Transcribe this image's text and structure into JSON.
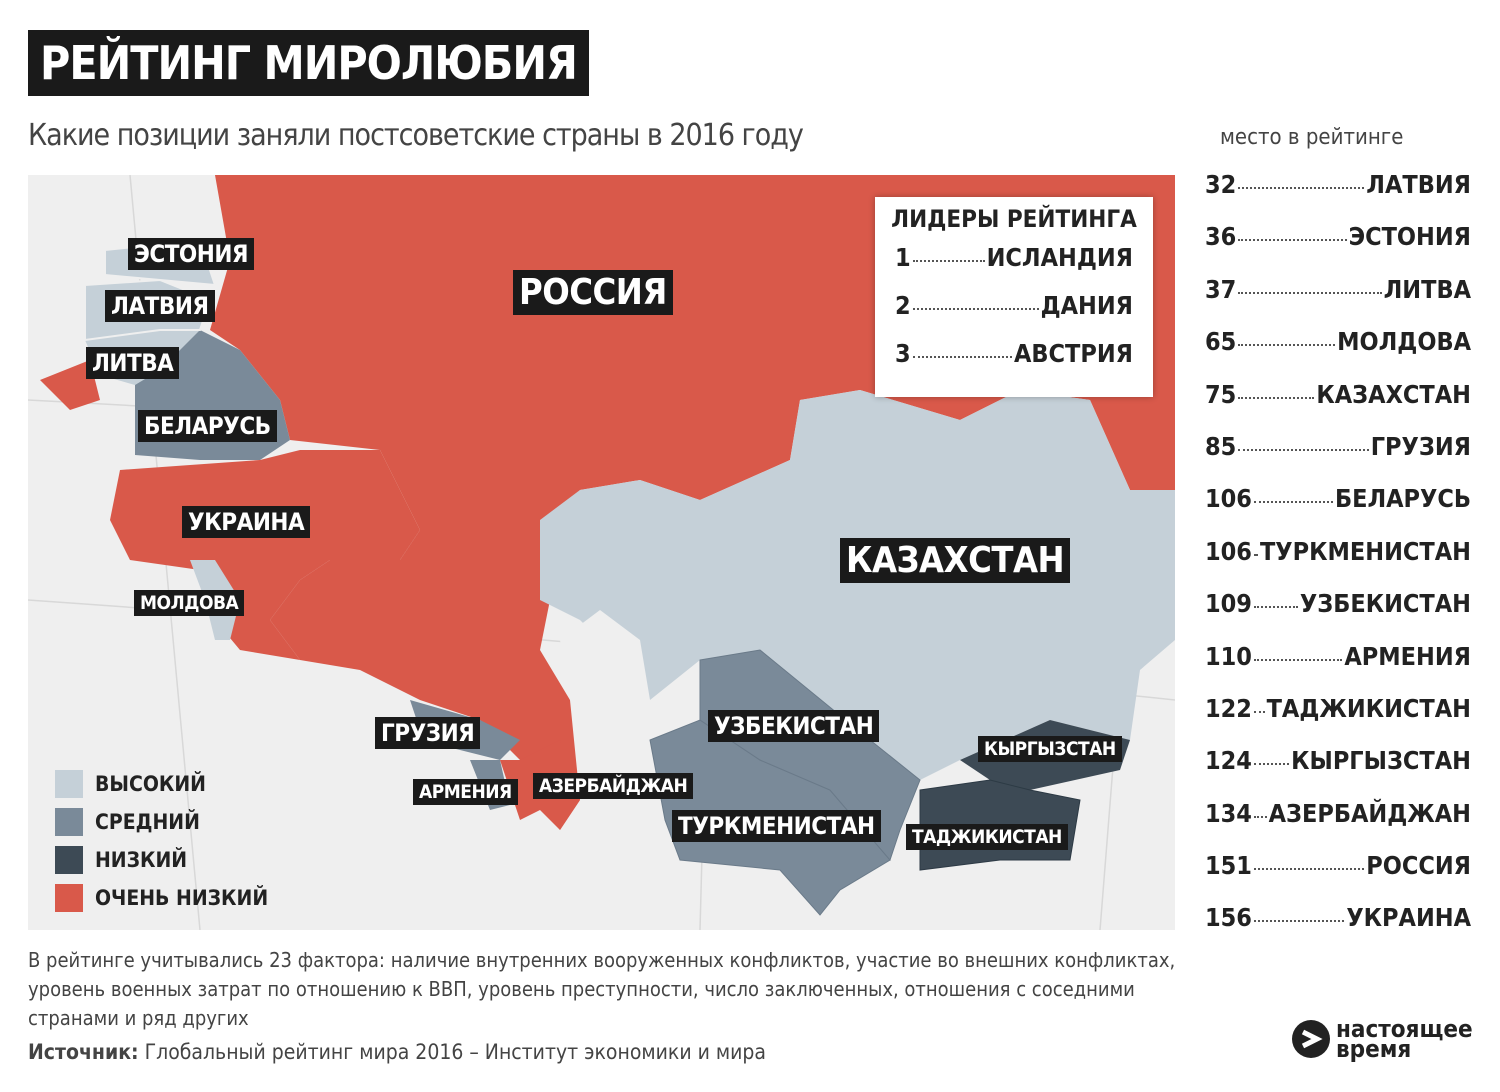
{
  "header": {
    "title": "РЕЙТИНГ МИРОЛЮБИЯ",
    "subtitle": "Какие позиции заняли постсоветские страны в 2016 году"
  },
  "map": {
    "labels": [
      "ЭСТОНИЯ",
      "ЛАТВИЯ",
      "ЛИТВА",
      "БЕЛАРУСЬ",
      "РОССИЯ",
      "УКРАИНА",
      "МОЛДОВА",
      "КАЗАХСТАН",
      "ГРУЗИЯ",
      "АРМЕНИЯ",
      "АЗЕРБАЙДЖАН",
      "УЗБЕКИСТАН",
      "ТУРКМЕНИСТАН",
      "КЫРГЫЗСТАН",
      "ТАДЖИКИСТАН"
    ]
  },
  "legend": [
    "ВЫСОКИЙ",
    "СРЕДНИЙ",
    "НИЗКИЙ",
    "ОЧЕНЬ НИЗКИЙ"
  ],
  "leaders": {
    "title": "ЛИДЕРЫ РЕЙТИНГА",
    "rows": [
      [
        1,
        "ИСЛАНДИЯ"
      ],
      [
        2,
        "ДАНИЯ"
      ],
      [
        3,
        "АВСТРИЯ"
      ]
    ]
  },
  "ranking": {
    "title": "место в рейтинге",
    "rows": [
      [
        32,
        "ЛАТВИЯ"
      ],
      [
        36,
        "ЭСТОНИЯ"
      ],
      [
        37,
        "ЛИТВА"
      ],
      [
        65,
        "МОЛДОВА"
      ],
      [
        75,
        "КАЗАХСТАН"
      ],
      [
        85,
        "ГРУЗИЯ"
      ],
      [
        106,
        "БЕЛАРУСЬ"
      ],
      [
        106,
        "ТУРКМЕНИСТАН"
      ],
      [
        109,
        "УЗБЕКИСТАН"
      ],
      [
        110,
        "АРМЕНИЯ"
      ],
      [
        122,
        "ТАДЖИКИСТАН"
      ],
      [
        124,
        "КЫРГЫЗСТАН"
      ],
      [
        134,
        "АЗЕРБАЙДЖАН"
      ],
      [
        151,
        "РОССИЯ"
      ],
      [
        156,
        "УКРАИНА"
      ]
    ]
  },
  "note": "В рейтинге учитывались 23 фактора: наличие внутренних вооруженных конфликтов, участие во внешних конфликтах, уровень военных затрат по отношению к ВВП, уровень преступности, число заключенных, отношения с соседними странами и ряд других",
  "source": {
    "label": "Источник:",
    "text": "Глобальный рейтинг мира 2016 – Институт экономики и мира"
  },
  "logo": {
    "line1": "настоящее",
    "line2": "время"
  }
}
